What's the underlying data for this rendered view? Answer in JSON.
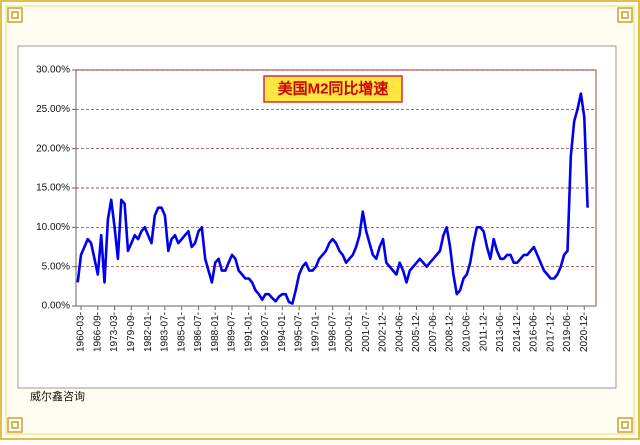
{
  "chart_data": {
    "type": "line",
    "title": "美国M2同比增速",
    "source": "威尔鑫咨询",
    "categories": [
      null,
      "1960-03-",
      null,
      null,
      null,
      null,
      "1966-09-",
      null,
      null,
      null,
      null,
      "1973-03-",
      null,
      null,
      null,
      null,
      "1979-09-",
      null,
      null,
      null,
      null,
      "1982-01-",
      null,
      null,
      null,
      null,
      "1983-07-",
      null,
      null,
      null,
      null,
      "1985-01-",
      null,
      null,
      null,
      null,
      "1986-07-",
      null,
      null,
      null,
      null,
      "1988-01-",
      null,
      null,
      null,
      null,
      "1989-07-",
      null,
      null,
      null,
      null,
      "1991-01-",
      null,
      null,
      null,
      null,
      "1992-07-",
      null,
      null,
      null,
      null,
      "1994-01-",
      null,
      null,
      null,
      null,
      "1995-07-",
      null,
      null,
      null,
      null,
      "1997-01-",
      null,
      null,
      null,
      null,
      "1998-07-",
      null,
      null,
      null,
      null,
      "2000-01-",
      null,
      null,
      null,
      null,
      "2001-07-",
      null,
      null,
      null,
      null,
      "2002-12-",
      null,
      null,
      null,
      null,
      "2004-06-",
      null,
      null,
      null,
      null,
      "2005-12-",
      null,
      null,
      null,
      null,
      "2007-06-",
      null,
      null,
      null,
      null,
      "2008-12-",
      null,
      null,
      null,
      null,
      "2010-06-",
      null,
      null,
      null,
      null,
      "2011-12-",
      null,
      null,
      null,
      null,
      "2013-06-",
      null,
      null,
      null,
      null,
      "2014-12-",
      null,
      null,
      null,
      null,
      "2016-06-",
      null,
      null,
      null,
      null,
      "2017-12-",
      null,
      null,
      null,
      null,
      "2019-06-",
      null,
      null,
      null,
      null,
      "2020-12-",
      null
    ],
    "series": [
      {
        "color": "#0000ee",
        "values": [
          3.0,
          6.5,
          7.5,
          8.5,
          8.0,
          6.0,
          4.0,
          9.0,
          3.0,
          11.0,
          13.5,
          10.0,
          6.0,
          13.5,
          13.0,
          7.0,
          8.0,
          9.0,
          8.5,
          9.5,
          10.0,
          9.0,
          8.0,
          11.5,
          12.5,
          12.5,
          11.5,
          7.0,
          8.5,
          9.0,
          8.0,
          8.5,
          9.0,
          9.5,
          7.5,
          8.0,
          9.5,
          10.0,
          6.0,
          4.5,
          3.0,
          5.5,
          6.0,
          4.5,
          4.5,
          5.5,
          6.5,
          6.0,
          4.5,
          4.0,
          3.5,
          3.5,
          3.0,
          2.0,
          1.5,
          0.8,
          1.5,
          1.5,
          1.0,
          0.6,
          1.2,
          1.5,
          1.5,
          0.5,
          0.3,
          2.0,
          4.0,
          5.0,
          5.5,
          4.5,
          4.5,
          5.0,
          6.0,
          6.5,
          7.0,
          8.0,
          8.5,
          8.0,
          7.0,
          6.5,
          5.5,
          6.0,
          6.5,
          7.5,
          9.0,
          12.0,
          9.5,
          8.0,
          6.5,
          6.0,
          7.5,
          8.5,
          5.5,
          5.0,
          4.5,
          4.0,
          5.5,
          4.5,
          3.0,
          4.5,
          5.0,
          5.5,
          6.0,
          5.5,
          5.0,
          5.5,
          6.0,
          6.5,
          7.0,
          9.0,
          10.0,
          7.5,
          4.0,
          1.5,
          2.0,
          3.5,
          4.0,
          5.5,
          8.0,
          10.0,
          10.0,
          9.5,
          7.5,
          6.0,
          8.5,
          7.0,
          6.0,
          6.0,
          6.5,
          6.5,
          5.5,
          5.5,
          6.0,
          6.5,
          6.5,
          7.0,
          7.5,
          6.5,
          5.5,
          4.5,
          4.0,
          3.5,
          3.5,
          4.0,
          5.0,
          6.5,
          7.0,
          19.0,
          23.5,
          25.0,
          27.0,
          24.0,
          12.5
        ]
      }
    ],
    "ylim": [
      0,
      30
    ],
    "yticks": [
      {
        "value": 0,
        "label": "0.00%"
      },
      {
        "value": 5,
        "label": "5.00%"
      },
      {
        "value": 10,
        "label": "10.00%"
      },
      {
        "value": 15,
        "label": "15.00%"
      },
      {
        "value": 20,
        "label": "20.00%"
      },
      {
        "value": 25,
        "label": "25.00%"
      },
      {
        "value": 30,
        "label": "30.00%"
      }
    ],
    "grid": true
  }
}
